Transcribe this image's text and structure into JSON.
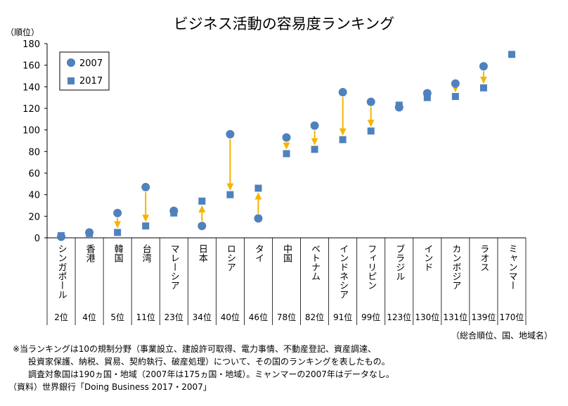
{
  "title": "ビジネス活動の容易度ランキング",
  "y_unit": "（順位）",
  "axis_caption": "（総合順位、国、地域名）",
  "notes": [
    "※当ランキングは10の規制分野（事業設立、建設許可取得、電力事情、不動産登記、資産調達、",
    "投資家保護、納税、貿易、契約執行、破産処理）について、その国のランキングを表したもの。",
    "調査対象国は190ヵ国・地域（2007年は175ヵ国・地域）。ミャンマーの2007年はデータなし。"
  ],
  "source": "（資料）世界銀行「Doing Business 2017・2007」",
  "colors": {
    "series2007": "#4f81bd",
    "series2017": "#4f81bd",
    "arrow": "#f4b400",
    "grid": "#c0c0c0"
  },
  "chart_data": {
    "type": "scatter",
    "ylim": [
      0,
      180
    ],
    "yticks": [
      0,
      20,
      40,
      60,
      80,
      100,
      120,
      140,
      160,
      180
    ],
    "categories": [
      "シンガポール",
      "香港",
      "韓国",
      "台湾",
      "マレーシア",
      "日本",
      "ロシア",
      "タイ",
      "中国",
      "ベトナム",
      "インドネシア",
      "フィリピン",
      "ブラジル",
      "インド",
      "カンボジア",
      "ラオス",
      "ミャンマー"
    ],
    "rank_labels": [
      "2位",
      "4位",
      "5位",
      "11位",
      "23位",
      "34位",
      "40位",
      "46位",
      "78位",
      "82位",
      "91位",
      "99位",
      "123位",
      "130位",
      "131位",
      "139位",
      "170位"
    ],
    "series": [
      {
        "name": "2007",
        "marker": "circle",
        "values": [
          1,
          5,
          23,
          47,
          25,
          11,
          96,
          18,
          93,
          104,
          135,
          126,
          121,
          134,
          143,
          159,
          null
        ]
      },
      {
        "name": "2017",
        "marker": "square",
        "values": [
          2,
          4,
          5,
          11,
          23,
          34,
          40,
          46,
          78,
          82,
          91,
          99,
          123,
          130,
          131,
          139,
          170
        ]
      }
    ],
    "legend": "top-left",
    "grid": false
  }
}
